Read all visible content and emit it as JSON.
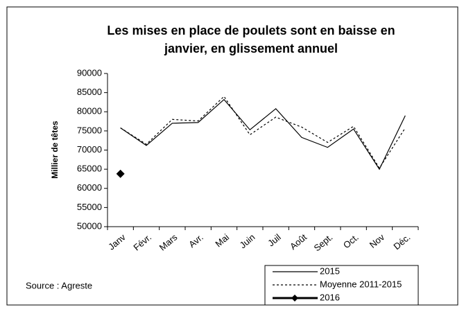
{
  "chart_data": {
    "type": "line",
    "title": [
      "Les mises en place de poulets sont en baisse en",
      "janvier, en glissement annuel"
    ],
    "y_label": "Millier de têtes",
    "source": "Source : Agreste",
    "categories": [
      "Janv",
      "Févr.",
      "Mars",
      "Avr.",
      "Mai",
      "Juin",
      "Juil",
      "Août",
      "Sept.",
      "Oct.",
      "Nov",
      "Déc."
    ],
    "series": [
      {
        "name": "2015",
        "color": "#000000",
        "style": "solid",
        "values": [
          75800,
          71200,
          77000,
          77200,
          83200,
          75300,
          80800,
          73300,
          70700,
          75500,
          65000,
          79000
        ]
      },
      {
        "name": "Moyenne 2011-2015",
        "color": "#000000",
        "style": "dotted",
        "values": [
          75800,
          71500,
          78000,
          77600,
          84000,
          74000,
          78600,
          76000,
          72000,
          76200,
          65300,
          75800
        ]
      },
      {
        "name": "2016",
        "color": "#000000",
        "style": "thick-diamond",
        "values": [
          63800,
          null,
          null,
          null,
          null,
          null,
          null,
          null,
          null,
          null,
          null,
          null
        ]
      }
    ],
    "ylim": [
      50000,
      90000
    ],
    "yticks": [
      50000,
      55000,
      60000,
      65000,
      70000,
      75000,
      80000,
      85000,
      90000
    ],
    "grid": false,
    "legend": "bottom-right"
  }
}
